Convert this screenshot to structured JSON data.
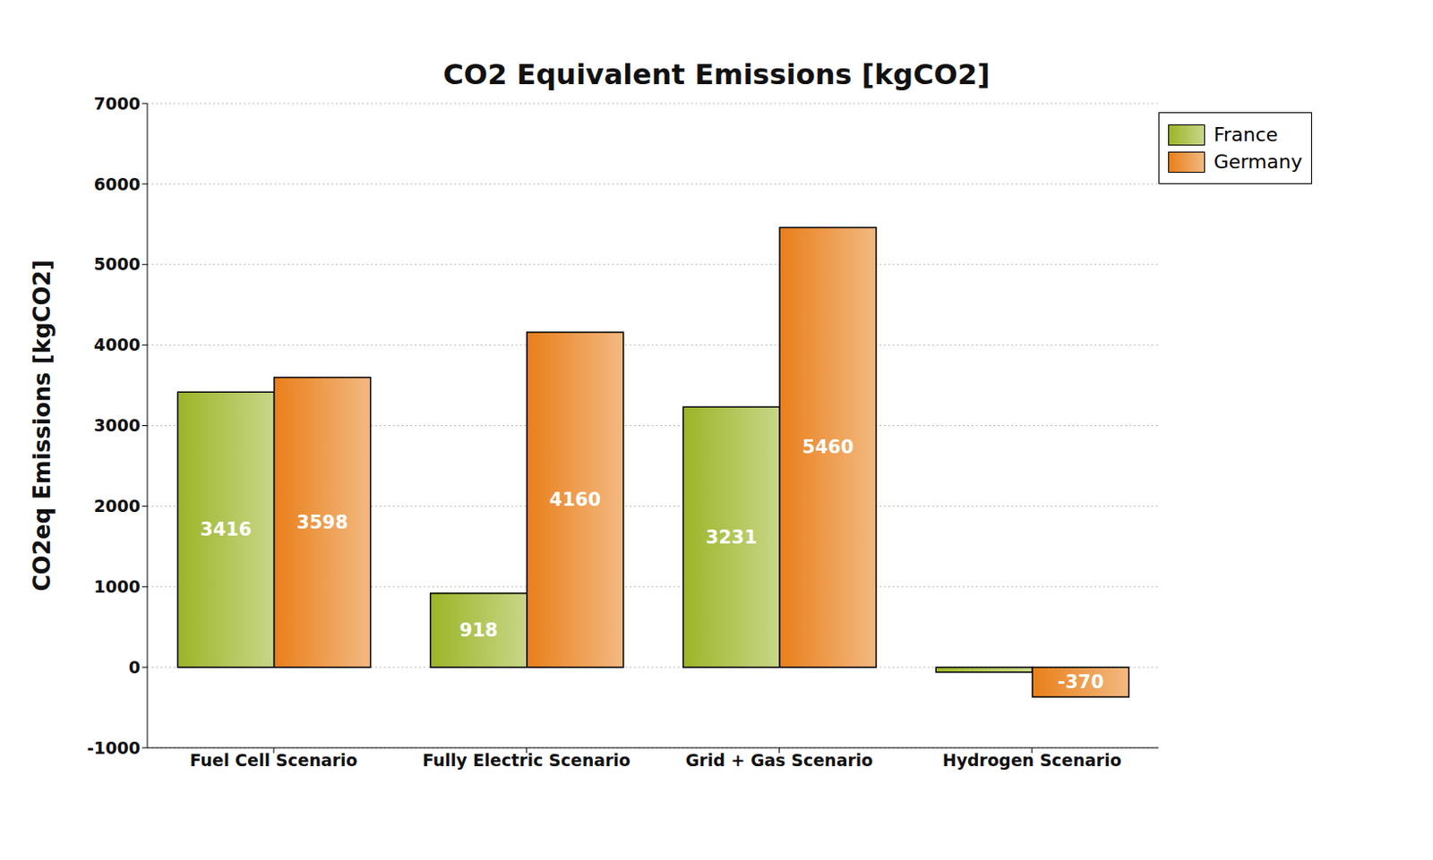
{
  "chart_data": {
    "type": "bar",
    "title": "CO2 Equivalent Emissions [kgCO2]",
    "y_label": "CO2eq Emissions [kgCO2]",
    "categories": [
      "Fuel Cell Scenario",
      "Fully Electric Scenario",
      "Grid + Gas Scenario",
      "Hydrogen Scenario"
    ],
    "series": [
      {
        "name": "France",
        "color": "#9bb527",
        "values": [
          3416,
          918,
          3231,
          -60
        ],
        "value_labels": [
          "3416",
          "918",
          "3231",
          null
        ]
      },
      {
        "name": "Germany",
        "color": "#e97f1a",
        "values": [
          3598,
          4160,
          5460,
          -370
        ],
        "value_labels": [
          "3598",
          "4160",
          "5460",
          "-370"
        ]
      }
    ],
    "ylim": [
      -1000,
      7000
    ],
    "yticks": [
      -1000,
      0,
      1000,
      2000,
      3000,
      4000,
      5000,
      6000,
      7000
    ],
    "grid": true,
    "legend": "upper right",
    "data_labels": true
  }
}
